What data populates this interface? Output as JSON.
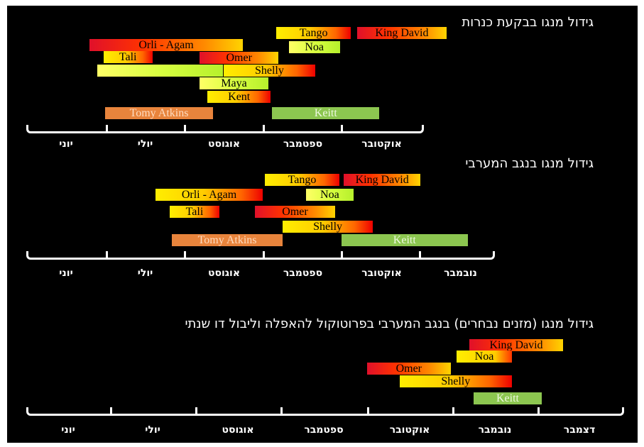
{
  "chart_data": [
    {
      "type": "timeline",
      "title": "גידול מנגו בבקעת כנרות",
      "months": [
        "יוני",
        "יולי",
        "אוגוסט",
        "ספטמבר",
        "אוקטובר"
      ],
      "bars": [
        {
          "label": "Tango",
          "start": 3.17,
          "end": 4.12,
          "style": "grad",
          "text_color": "#000000"
        },
        {
          "label": "King David",
          "start": 4.2,
          "end": 5.33,
          "style": "grad-rev",
          "text_color": "#000000"
        },
        {
          "label": "Orli - Agam",
          "start": 0.8,
          "end": 2.75,
          "style": "grad-rev",
          "text_color": "#000000"
        },
        {
          "label": "Noa",
          "start": 3.33,
          "end": 3.98,
          "style": "grad-lime",
          "text_color": "#000000"
        },
        {
          "label": "Tali",
          "start": 0.98,
          "end": 1.6,
          "style": "grad",
          "text_color": "#000000"
        },
        {
          "label": "Omer",
          "start": 2.2,
          "end": 3.2,
          "style": "grad-rev",
          "text_color": "#000000"
        },
        {
          "label": "",
          "start": 0.9,
          "end": 2.5,
          "style": "grad-lime",
          "text_color": "#000000"
        },
        {
          "label": "Shelly",
          "start": 2.5,
          "end": 3.67,
          "style": "grad",
          "text_color": "#000000"
        },
        {
          "label": "Maya",
          "start": 2.2,
          "end": 3.07,
          "style": "grad-lime",
          "text_color": "#000000"
        },
        {
          "label": "Kent",
          "start": 2.3,
          "end": 3.1,
          "style": "grad",
          "text_color": "#000000"
        },
        {
          "label": "Tomy Atkins",
          "start": 1.0,
          "end": 2.37,
          "style": "solid-orange",
          "text_color": "#ffdcc0"
        },
        {
          "label": "Keitt",
          "start": 3.12,
          "end": 4.48,
          "style": "solid-green",
          "text_color": "#eef9e0"
        }
      ]
    },
    {
      "type": "timeline",
      "title": "גידול מנגו בנגב המערבי",
      "months": [
        "יוני",
        "יולי",
        "אוגוסט",
        "ספטמבר",
        "אוקטובר",
        "נובמבר"
      ],
      "bars": [
        {
          "label": "Tango",
          "start": 3.03,
          "end": 3.97,
          "style": "grad",
          "text_color": "#000000"
        },
        {
          "label": "King David",
          "start": 4.03,
          "end": 5.0,
          "style": "grad-rev",
          "text_color": "#000000"
        },
        {
          "label": "Orli - Agam",
          "start": 1.64,
          "end": 3.0,
          "style": "grad",
          "text_color": "#000000"
        },
        {
          "label": "Noa",
          "start": 3.55,
          "end": 4.15,
          "style": "grad-lime",
          "text_color": "#000000"
        },
        {
          "label": "Tali",
          "start": 1.82,
          "end": 2.45,
          "style": "grad",
          "text_color": "#000000"
        },
        {
          "label": "Omer",
          "start": 2.9,
          "end": 3.92,
          "style": "grad-rev",
          "text_color": "#000000"
        },
        {
          "label": "Shelly",
          "start": 3.25,
          "end": 4.4,
          "style": "grad",
          "text_color": "#000000"
        },
        {
          "label": "Tomy Atkins",
          "start": 1.85,
          "end": 3.25,
          "style": "solid-orange",
          "text_color": "#ffdcc0"
        },
        {
          "label": "Keitt",
          "start": 4.0,
          "end": 5.6,
          "style": "solid-green",
          "text_color": "#eef9e0"
        }
      ]
    },
    {
      "type": "timeline",
      "title": "גידול מנגו (מזנים נבחרים) בנגב המערבי בפרוטוקול להאפלה וליבול דו שנתי",
      "months": [
        "יוני",
        "יולי",
        "אוגוסט",
        "ספטמבר",
        "אוקטובר",
        "נובמבר",
        "דצמבר"
      ],
      "bars": [
        {
          "label": "King David",
          "start": 5.2,
          "end": 6.3,
          "style": "grad-rev",
          "text_color": "#000000"
        },
        {
          "label": "Noa",
          "start": 5.05,
          "end": 5.7,
          "style": "grad-ym",
          "text_color": "#000000"
        },
        {
          "label": "Omer",
          "start": 4.0,
          "end": 4.98,
          "style": "grad-rev",
          "text_color": "#000000"
        },
        {
          "label": "Shelly",
          "start": 4.38,
          "end": 5.7,
          "style": "grad",
          "text_color": "#000000"
        },
        {
          "label": "Keitt",
          "start": 5.25,
          "end": 6.05,
          "style": "solid-green",
          "text_color": "#eef9e0"
        }
      ]
    }
  ]
}
